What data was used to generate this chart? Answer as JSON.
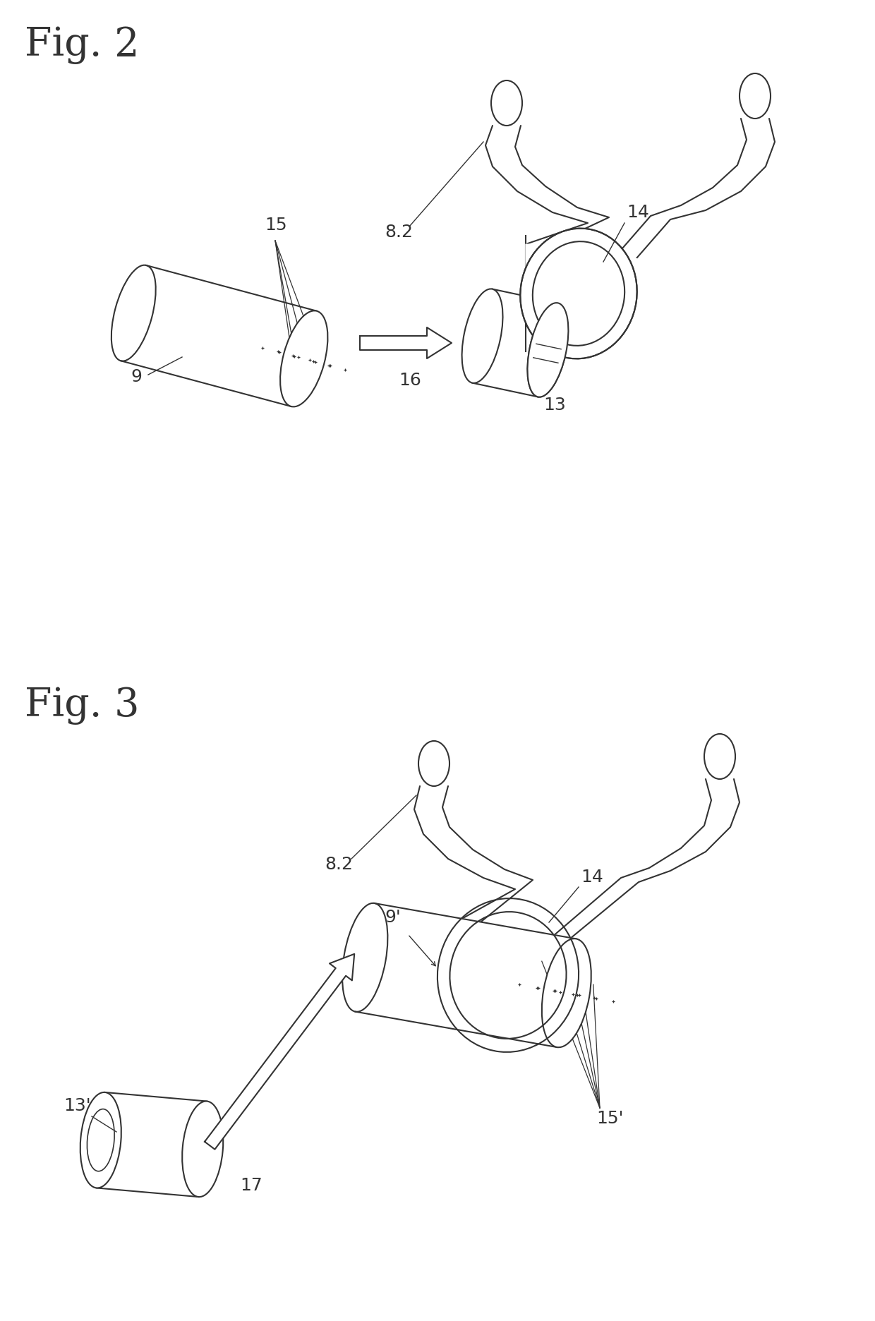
{
  "fig2_label": "Fig. 2",
  "fig3_label": "Fig. 3",
  "bg": "#ffffff",
  "lc": "#333333",
  "label_fs": 18,
  "fig_label_fs": 40
}
